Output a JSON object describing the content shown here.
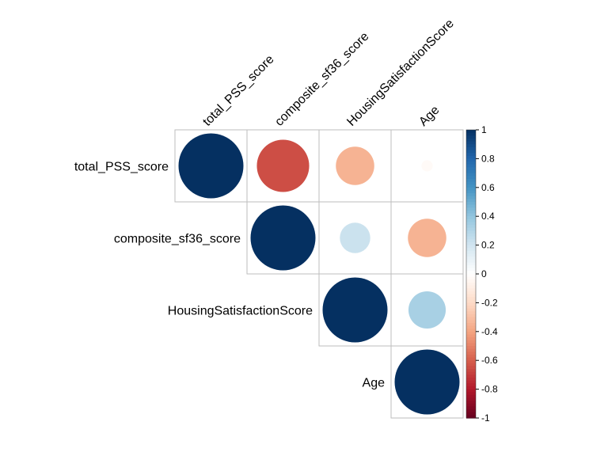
{
  "chart_data": {
    "type": "heatmap",
    "variables": [
      "total_PSS_score",
      "composite_sf36_score",
      "HousingSatisfactionScore",
      "Age"
    ],
    "matrix": [
      [
        1.0,
        -0.65,
        -0.35,
        -0.03
      ],
      [
        -0.65,
        1.0,
        0.22,
        -0.35
      ],
      [
        -0.35,
        0.22,
        1.0,
        0.33
      ],
      [
        -0.03,
        -0.35,
        0.33,
        1.0
      ]
    ],
    "display": "upper",
    "legend": {
      "min": -1,
      "max": 1,
      "ticks": [
        "1",
        "0.8",
        "0.6",
        "0.4",
        "0.2",
        "0",
        "-0.2",
        "-0.4",
        "-0.6",
        "-0.8",
        "-1"
      ],
      "placement": "right"
    },
    "colors": {
      "low": "#67001F",
      "high": "#053061"
    }
  }
}
